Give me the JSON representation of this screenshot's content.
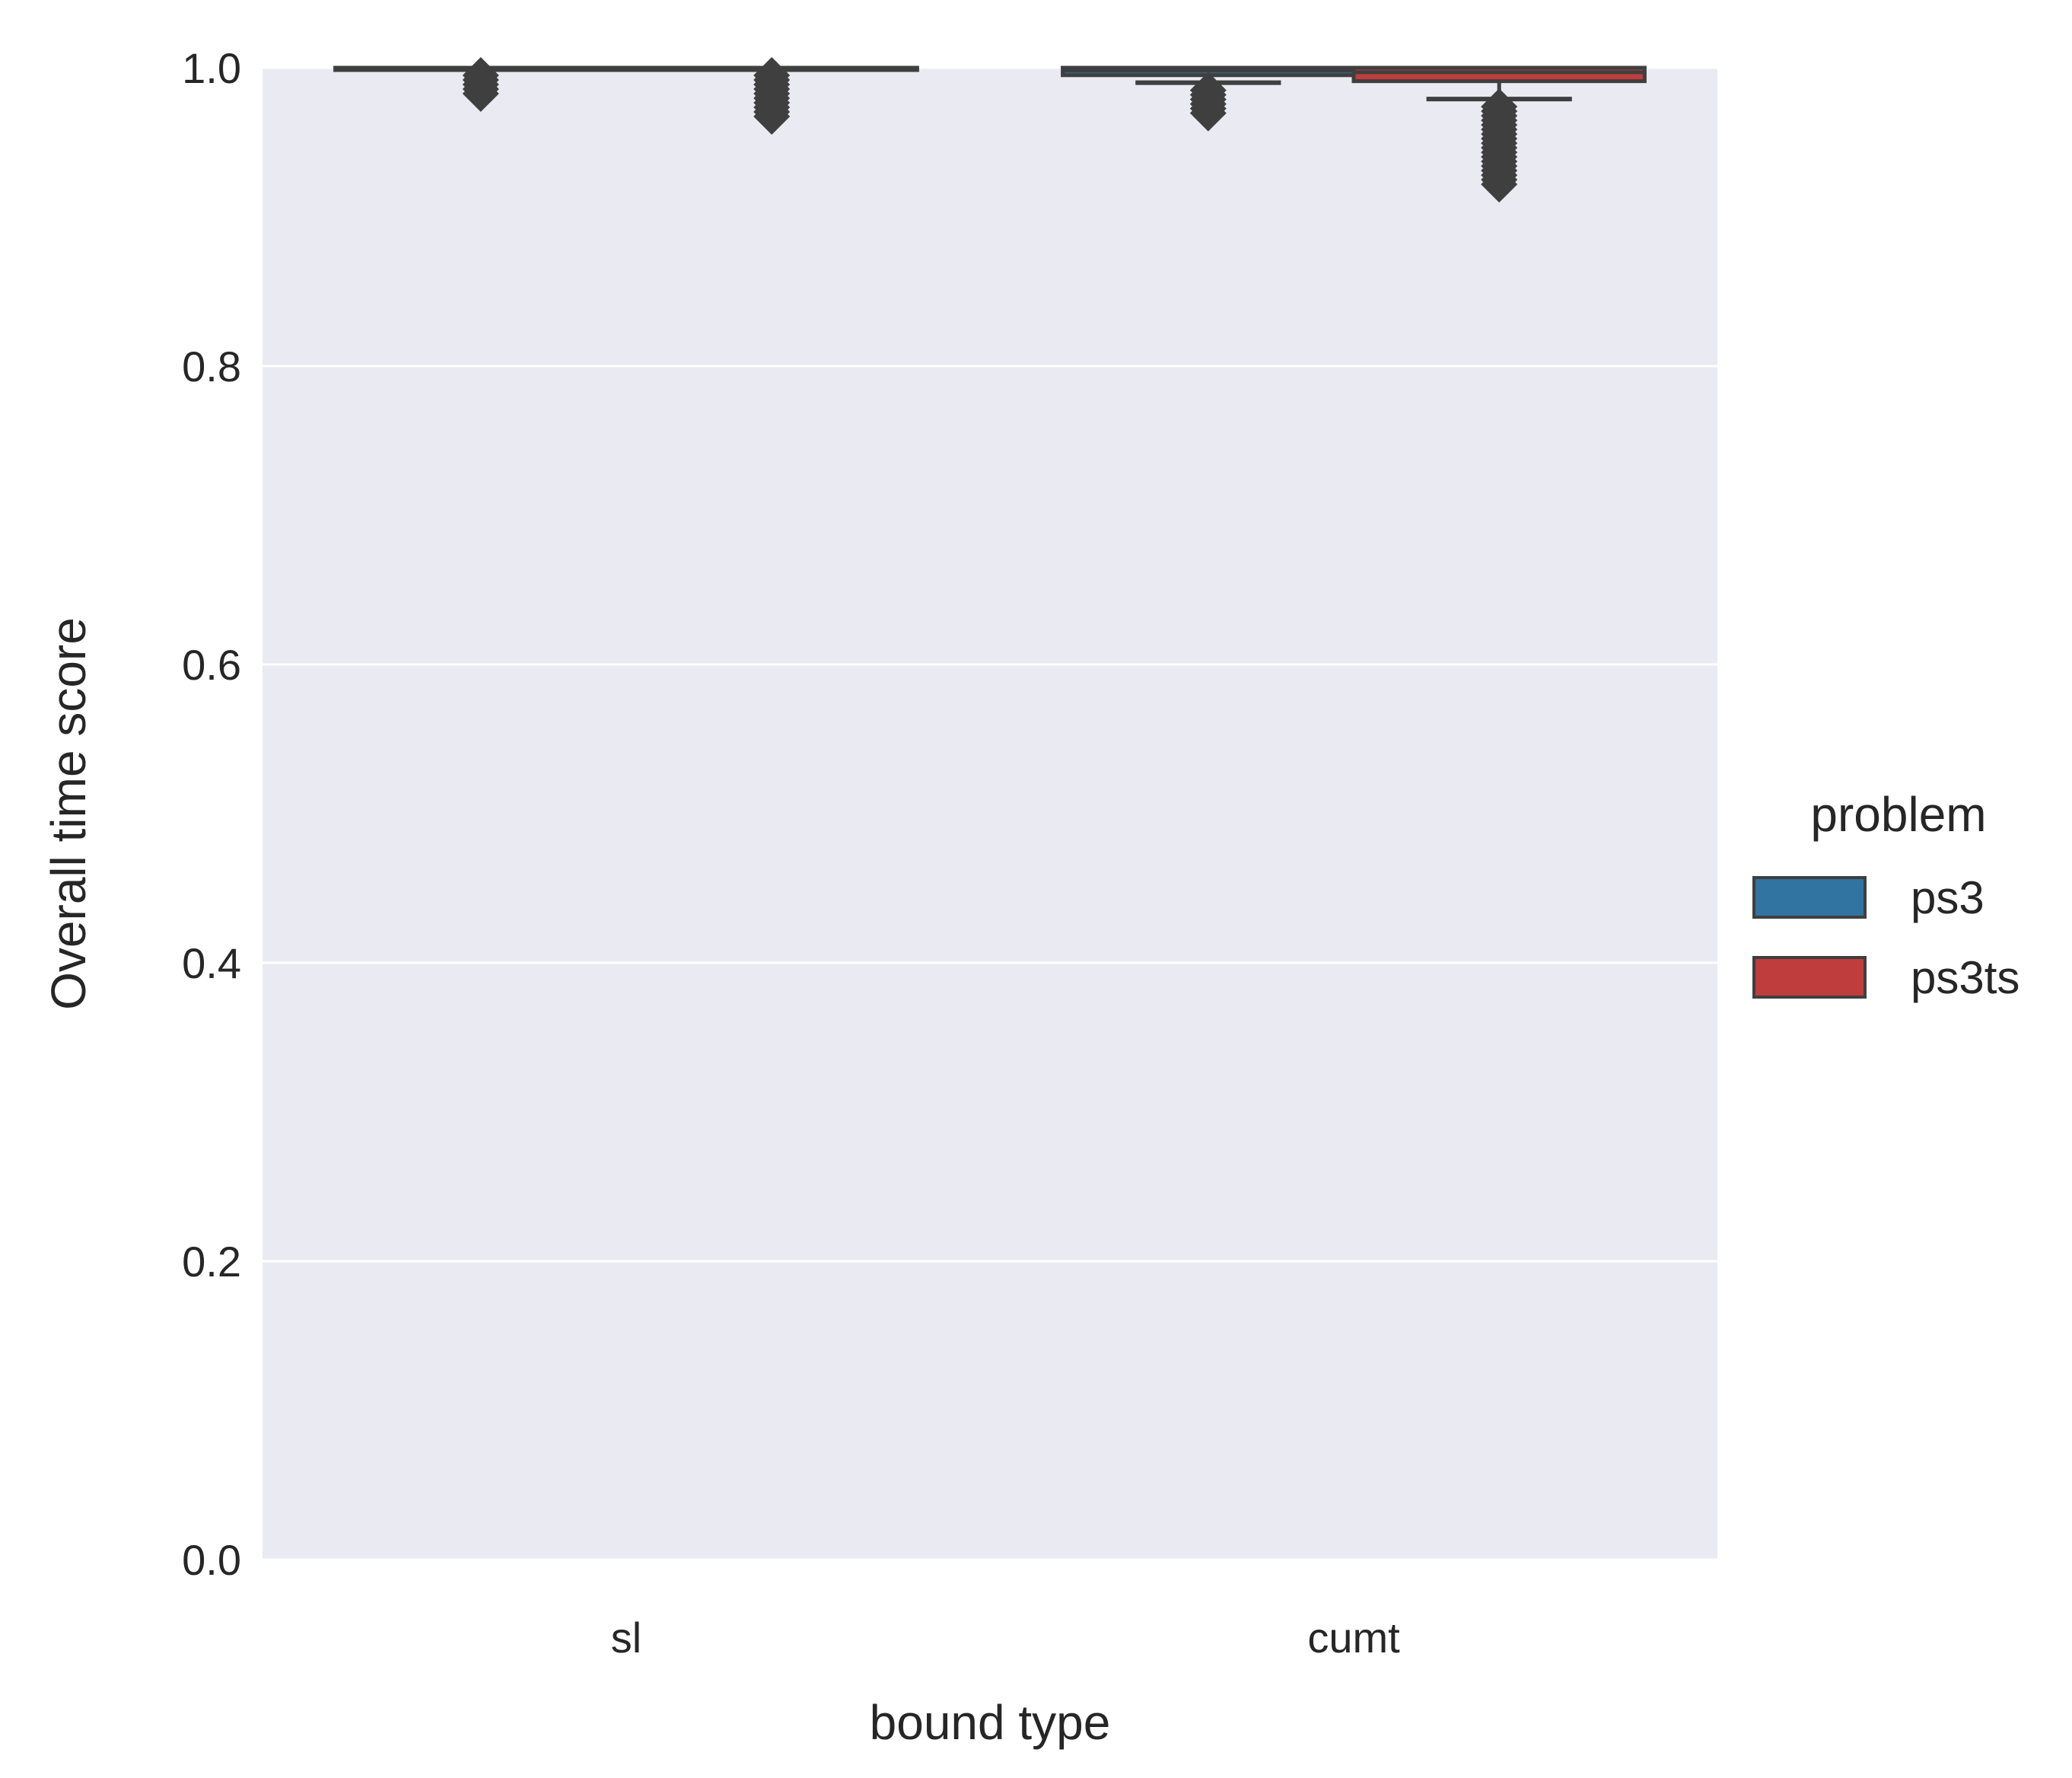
{
  "chart_data": {
    "type": "box",
    "categories": [
      "sl",
      "cumt"
    ],
    "xlabel": "bound type",
    "ylabel": "Overall time score",
    "ylim": [
      0,
      1
    ],
    "yticks": [
      0.0,
      0.2,
      0.4,
      0.6,
      0.8,
      1.0
    ],
    "ytick_labels": [
      "0.0",
      "0.2",
      "0.4",
      "0.6",
      "0.8",
      "1.0"
    ],
    "grid": true,
    "legend": {
      "title": "problem",
      "placement": "right"
    },
    "series": [
      {
        "name": "ps3",
        "color": "#3274a1",
        "boxes": [
          {
            "category": "sl",
            "whisker_low": 1.0,
            "q1": 1.0,
            "median": 1.0,
            "q3": 1.0,
            "whisker_high": 1.0,
            "outlier_min": 0.968
          },
          {
            "category": "cumt",
            "whisker_low": 0.99,
            "q1": 0.995,
            "median": 0.998,
            "q3": 1.0,
            "whisker_high": 1.0,
            "outlier_min": 0.955
          }
        ]
      },
      {
        "name": "ps3ts",
        "color": "#c03d3e",
        "boxes": [
          {
            "category": "sl",
            "whisker_low": 1.0,
            "q1": 1.0,
            "median": 1.0,
            "q3": 1.0,
            "whisker_high": 1.0,
            "outlier_min": 0.955
          },
          {
            "category": "cumt",
            "whisker_low": 0.979,
            "q1": 0.991,
            "median": 0.997,
            "q3": 1.0,
            "whisker_high": 1.0,
            "outlier_min": 0.908
          }
        ]
      }
    ]
  }
}
